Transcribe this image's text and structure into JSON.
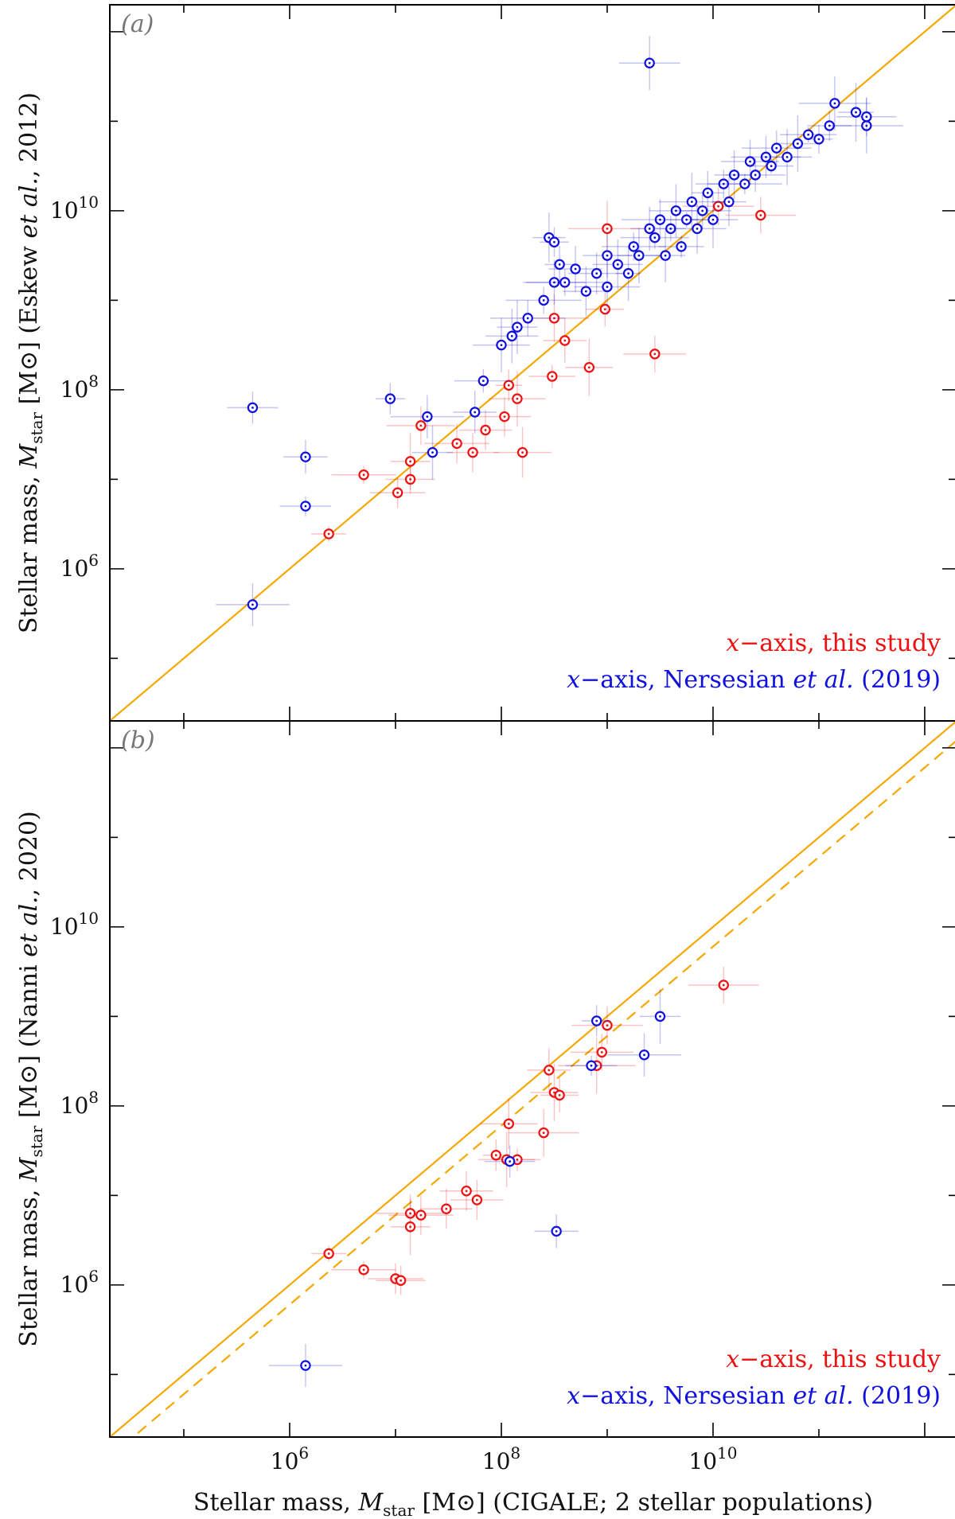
{
  "chart_data": [
    {
      "type": "scatter",
      "panel_tag": "(a)",
      "xscale": "log",
      "yscale": "log",
      "xlim": [
        20000,
        2000000000000
      ],
      "ylim": [
        20000,
        2000000000000
      ],
      "ylabel_pre": "Stellar mass, ",
      "ylabel_M": "M",
      "ylabel_sub": "star",
      "ylabel_post": " [M⊙] (Eskew ",
      "ylabel_etal": "et al.",
      "ylabel_year": ", 2012)",
      "yticks": [
        {
          "value": 1000000,
          "mant": "10",
          "exp": "6"
        },
        {
          "value": 100000000,
          "mant": "10",
          "exp": "8"
        },
        {
          "value": 10000000000,
          "mant": "10",
          "exp": "10"
        }
      ],
      "reference_lines": [
        {
          "style": "solid",
          "offset_dex": 0,
          "color": "#f5a800"
        }
      ],
      "legend": [
        {
          "pre": "",
          "italic": "x",
          "post": "−axis, this study",
          "color": "#ee1111"
        },
        {
          "pre": "",
          "italic": "x",
          "post": "−axis, Nersesian ",
          "italic2": "et al.",
          "post2": " (2019)",
          "color": "#1111dd"
        }
      ],
      "series": [
        {
          "name": "this study",
          "color": "#ee1111",
          "points": [
            [
              6.37,
              6.39
            ],
            [
              6.7,
              7.05
            ],
            [
              7.02,
              6.85
            ],
            [
              7.14,
              7.0
            ],
            [
              7.14,
              7.2
            ],
            [
              7.24,
              7.6
            ],
            [
              7.58,
              7.4
            ],
            [
              7.73,
              7.3
            ],
            [
              7.85,
              7.55
            ],
            [
              8.03,
              7.7
            ],
            [
              8.07,
              8.05
            ],
            [
              8.15,
              7.9
            ],
            [
              8.2,
              7.3
            ],
            [
              8.48,
              8.15
            ],
            [
              8.5,
              8.8
            ],
            [
              8.6,
              8.55
            ],
            [
              8.83,
              8.25
            ],
            [
              8.98,
              8.9
            ],
            [
              9.0,
              9.8
            ],
            [
              9.45,
              8.4
            ],
            [
              10.05,
              10.05
            ],
            [
              10.45,
              9.95
            ]
          ]
        },
        {
          "name": "Nersesian et al. (2019)",
          "color": "#1111dd",
          "points": [
            [
              5.65,
              5.6
            ],
            [
              5.65,
              7.8
            ],
            [
              6.15,
              7.25
            ],
            [
              6.15,
              6.7
            ],
            [
              6.95,
              7.9
            ],
            [
              7.3,
              7.7
            ],
            [
              7.35,
              7.3
            ],
            [
              7.75,
              7.75
            ],
            [
              7.83,
              8.1
            ],
            [
              8.0,
              8.5
            ],
            [
              8.1,
              8.6
            ],
            [
              8.15,
              8.7
            ],
            [
              8.25,
              8.8
            ],
            [
              8.4,
              9.0
            ],
            [
              8.45,
              9.7
            ],
            [
              8.5,
              9.2
            ],
            [
              8.55,
              9.4
            ],
            [
              8.6,
              9.2
            ],
            [
              8.7,
              9.35
            ],
            [
              8.8,
              9.1
            ],
            [
              8.9,
              9.3
            ],
            [
              9.0,
              9.5
            ],
            [
              9.1,
              9.4
            ],
            [
              9.2,
              9.3
            ],
            [
              9.25,
              9.6
            ],
            [
              9.3,
              9.5
            ],
            [
              9.4,
              9.8
            ],
            [
              9.45,
              9.7
            ],
            [
              9.5,
              9.9
            ],
            [
              9.55,
              9.5
            ],
            [
              9.6,
              9.8
            ],
            [
              9.65,
              10.0
            ],
            [
              9.7,
              9.6
            ],
            [
              9.75,
              9.9
            ],
            [
              9.8,
              10.1
            ],
            [
              9.85,
              9.8
            ],
            [
              9.9,
              10.0
            ],
            [
              9.95,
              10.2
            ],
            [
              10.0,
              9.9
            ],
            [
              10.1,
              10.3
            ],
            [
              10.15,
              10.1
            ],
            [
              10.2,
              10.4
            ],
            [
              10.3,
              10.3
            ],
            [
              10.35,
              10.55
            ],
            [
              10.4,
              10.4
            ],
            [
              10.5,
              10.6
            ],
            [
              10.55,
              10.5
            ],
            [
              10.6,
              10.7
            ],
            [
              10.7,
              10.6
            ],
            [
              10.8,
              10.75
            ],
            [
              10.9,
              10.85
            ],
            [
              11.0,
              10.8
            ],
            [
              11.1,
              10.95
            ],
            [
              11.15,
              11.2
            ],
            [
              11.35,
              11.1
            ],
            [
              11.45,
              10.95
            ],
            [
              11.45,
              11.05
            ],
            [
              9.0,
              9.15
            ],
            [
              8.5,
              9.65
            ],
            [
              9.4,
              11.65
            ]
          ]
        }
      ]
    },
    {
      "type": "scatter",
      "panel_tag": "(b)",
      "xscale": "log",
      "yscale": "log",
      "xlim": [
        20000,
        2000000000000
      ],
      "ylim": [
        20000,
        2000000000000
      ],
      "xlabel_pre": "Stellar mass, ",
      "xlabel_M": "M",
      "xlabel_sub": "star",
      "xlabel_post": " [M⊙] (CIGALE; 2 stellar populations)",
      "ylabel_pre": "Stellar mass, ",
      "ylabel_M": "M",
      "ylabel_sub": "star",
      "ylabel_post": " [M⊙] (Nanni ",
      "ylabel_etal": "et al.",
      "ylabel_year": ", 2020)",
      "xticks": [
        {
          "value": 1000000,
          "mant": "10",
          "exp": "6"
        },
        {
          "value": 100000000,
          "mant": "10",
          "exp": "8"
        },
        {
          "value": 10000000000,
          "mant": "10",
          "exp": "10"
        }
      ],
      "yticks": [
        {
          "value": 1000000,
          "mant": "10",
          "exp": "6"
        },
        {
          "value": 100000000,
          "mant": "10",
          "exp": "8"
        },
        {
          "value": 10000000000,
          "mant": "10",
          "exp": "10"
        }
      ],
      "reference_lines": [
        {
          "style": "solid",
          "offset_dex": 0,
          "color": "#f5a800"
        },
        {
          "style": "dashed",
          "offset_dex": -0.22,
          "color": "#f5a800"
        }
      ],
      "legend": [
        {
          "pre": "",
          "italic": "x",
          "post": "−axis, this study",
          "color": "#ee1111"
        },
        {
          "pre": "",
          "italic": "x",
          "post": "−axis, Nersesian ",
          "italic2": "et al.",
          "post2": " (2019)",
          "color": "#1111dd"
        }
      ],
      "series": [
        {
          "name": "this study",
          "color": "#ee1111",
          "points": [
            [
              6.37,
              6.35
            ],
            [
              6.7,
              6.17
            ],
            [
              7.0,
              6.07
            ],
            [
              7.05,
              6.05
            ],
            [
              7.14,
              6.65
            ],
            [
              7.14,
              6.8
            ],
            [
              7.24,
              6.78
            ],
            [
              7.48,
              6.85
            ],
            [
              7.67,
              7.05
            ],
            [
              7.77,
              6.95
            ],
            [
              7.95,
              7.45
            ],
            [
              8.05,
              7.4
            ],
            [
              8.07,
              7.8
            ],
            [
              8.15,
              7.4
            ],
            [
              8.4,
              7.7
            ],
            [
              8.45,
              8.4
            ],
            [
              8.5,
              8.15
            ],
            [
              8.55,
              8.12
            ],
            [
              8.9,
              8.45
            ],
            [
              8.95,
              8.6
            ],
            [
              9.0,
              8.9
            ],
            [
              10.1,
              9.35
            ]
          ]
        },
        {
          "name": "Nersesian et al. (2019)",
          "color": "#1111dd",
          "points": [
            [
              6.15,
              5.1
            ],
            [
              8.08,
              7.38
            ],
            [
              8.52,
              6.6
            ],
            [
              8.85,
              8.45
            ],
            [
              8.9,
              8.95
            ],
            [
              9.35,
              8.57
            ],
            [
              9.5,
              9.0
            ]
          ]
        }
      ]
    }
  ]
}
